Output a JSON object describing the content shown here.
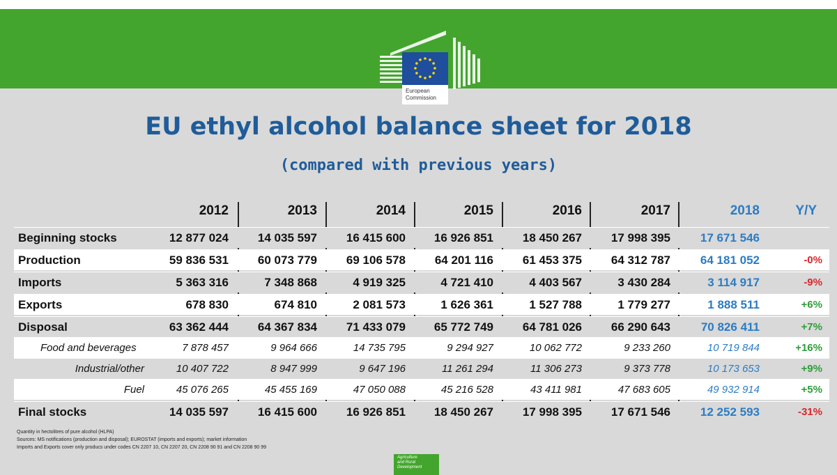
{
  "header": {
    "logo_text": [
      "European",
      "Commission"
    ],
    "title": "EU ethyl alcohol balance sheet for 2018",
    "subtitle": "(compared with previous years)"
  },
  "table": {
    "columns": [
      "2012",
      "2013",
      "2014",
      "2015",
      "2016",
      "2017",
      "2018",
      "Y/Y"
    ],
    "rows": [
      [
        "Beginning stocks",
        "12 877 024",
        "14 035 597",
        "16 415 600",
        "16 926 851",
        "18 450 267",
        "17 998 395",
        "17 671 546"
      ],
      [
        "Production",
        "59 836 531",
        "60 073 779",
        "69 106 578",
        "64 201 116",
        "61 453 375",
        "64 312 787",
        "64 181 052",
        "-0%"
      ],
      [
        "Imports",
        "5 363 316",
        "7 348 868",
        "4 919 325",
        "4 721 410",
        "4 403 567",
        "3 430 284",
        "3 114 917",
        "-9%"
      ],
      [
        "Exports",
        "678 830",
        "674 810",
        "2 081 573",
        "1 626 361",
        "1 527 788",
        "1 779 277",
        "1 888 511",
        "+6%"
      ],
      [
        "Disposal",
        "63 362 444",
        "64 367 834",
        "71 433 079",
        "65 772 749",
        "64 781 026",
        "66 290 643",
        "70 826 411",
        "+7%"
      ],
      [
        "Food and beverages",
        "7 878 457",
        "9 964 666",
        "14 735 795",
        "9 294 927",
        "10 062 772",
        "9 233 260",
        "10 719 844",
        "+16%"
      ],
      [
        "Industrial/other",
        "10 407 722",
        "8 947 999",
        "9 647 196",
        "11 261 294",
        "11 306 273",
        "9 373 778",
        "10 173 653",
        "+9%"
      ],
      [
        "Fuel",
        "45 076 265",
        "45 455 169",
        "47 050 088",
        "45 216 528",
        "43 411 981",
        "47 683 605",
        "49 932 914",
        "+5%"
      ],
      [
        "Final stocks",
        "14 035 597",
        "16 415 600",
        "16 926 851",
        "18 450 267",
        "17 998 395",
        "17 671 546",
        "12 252 593",
        "-31%"
      ]
    ]
  },
  "notes": [
    "Quantity in hectolitres of pure alcohol (HLPA)",
    "Sources: MS notifications (production and disposal); EUROSTAT (imports and exports); market information",
    "Imports and Exports cover only producs under codes CN 2207 10, CN 2207 20, CN 2208 90 91 and CN 2208 90 99"
  ],
  "footer": {
    "badge": [
      "Agriculture",
      "and Rural",
      "Development"
    ]
  }
}
